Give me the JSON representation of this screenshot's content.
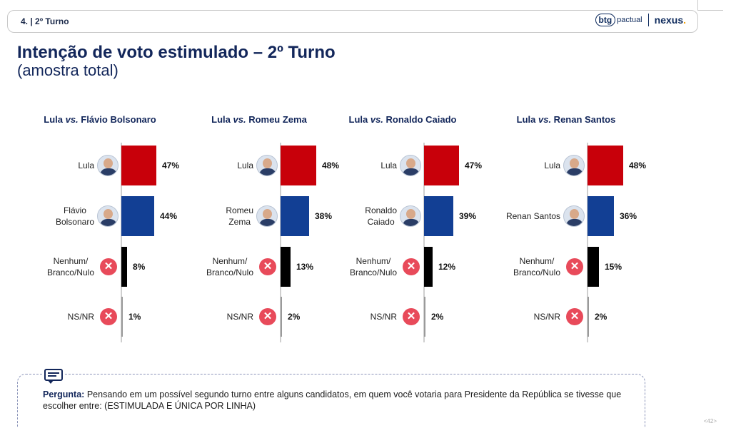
{
  "header": {
    "section_label": "4. | 2º Turno",
    "logo_btg_a": "btg",
    "logo_btg_b": "pactual",
    "logo_nexus": "nexus",
    "logo_nexus_dot": "."
  },
  "title": "Intenção de voto estimulado – 2º Turno",
  "subtitle": "(amostra total)",
  "colors": {
    "lula": "#c8000a",
    "opponent": "#123f94",
    "nenhum": "#000000",
    "nsnr": "#9a9a9a",
    "x_icon": "#e84a5a"
  },
  "chart_data": [
    {
      "type": "bar",
      "title_a": "Lula",
      "title_vs": "vs.",
      "title_b": "Flávio Bolsonaro",
      "categories": [
        "Lula",
        "Flávio Bolsonaro",
        "Nenhum/ Branco/Nulo",
        "NS/NR"
      ],
      "labels": [
        "Lula",
        "Flávio Bolsonaro",
        "Nenhum/ Branco/Nulo",
        "NS/NR"
      ],
      "values": [
        47,
        44,
        8,
        1
      ],
      "value_labels": [
        "47%",
        "44%",
        "8%",
        "1%"
      ]
    },
    {
      "type": "bar",
      "title_a": "Lula",
      "title_vs": "vs.",
      "title_b": "Romeu Zema",
      "categories": [
        "Lula",
        "Romeu Zema",
        "Nenhum/ Branco/Nulo",
        "NS/NR"
      ],
      "labels": [
        "Lula",
        "Romeu Zema",
        "Nenhum/ Branco/Nulo",
        "NS/NR"
      ],
      "values": [
        48,
        38,
        13,
        2
      ],
      "value_labels": [
        "48%",
        "38%",
        "13%",
        "2%"
      ]
    },
    {
      "type": "bar",
      "title_a": "Lula",
      "title_vs": "vs.",
      "title_b": "Ronaldo Caiado",
      "categories": [
        "Lula",
        "Ronaldo Caiado",
        "Nenhum/ Branco/Nulo",
        "NS/NR"
      ],
      "labels": [
        "Lula",
        "Ronaldo Caiado",
        "Nenhum/ Branco/Nulo",
        "NS/NR"
      ],
      "values": [
        47,
        39,
        12,
        2
      ],
      "value_labels": [
        "47%",
        "39%",
        "12%",
        "2%"
      ]
    },
    {
      "type": "bar",
      "title_a": "Lula",
      "title_vs": "vs.",
      "title_b": "Renan Santos",
      "categories": [
        "Lula",
        "Renan Santos",
        "Nenhum/ Branco/Nulo",
        "NS/NR"
      ],
      "labels": [
        "Lula",
        "Renan Santos",
        "Nenhum/ Branco/Nulo",
        "NS/NR"
      ],
      "values": [
        48,
        36,
        15,
        2
      ],
      "value_labels": [
        "48%",
        "36%",
        "15%",
        "2%"
      ]
    }
  ],
  "question": {
    "label": "Pergunta:",
    "text": "Pensando em um possível segundo turno entre alguns candidatos, em quem você votaria para Presidente da República se tivesse que escolher entre: (ESTIMULADA E ÚNICA POR LINHA)"
  },
  "page_number": "<42>",
  "x_glyph": "✕"
}
